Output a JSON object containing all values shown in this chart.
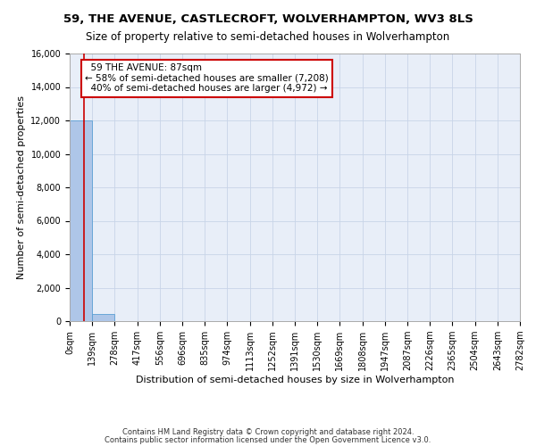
{
  "title": "59, THE AVENUE, CASTLECROFT, WOLVERHAMPTON, WV3 8LS",
  "subtitle": "Size of property relative to semi-detached houses in Wolverhampton",
  "xlabel": "Distribution of semi-detached houses by size in Wolverhampton",
  "ylabel": "Number of semi-detached properties",
  "property_size": 87,
  "property_label": "59 THE AVENUE: 87sqm",
  "pct_smaller": 58,
  "count_smaller": 7208,
  "pct_larger": 40,
  "count_larger": 4972,
  "bin_edges": [
    0,
    139,
    278,
    417,
    556,
    696,
    835,
    974,
    1113,
    1252,
    1391,
    1530,
    1669,
    1808,
    1947,
    2087,
    2226,
    2365,
    2504,
    2643,
    2782
  ],
  "bin_labels": [
    "0sqm",
    "139sqm",
    "278sqm",
    "417sqm",
    "556sqm",
    "696sqm",
    "835sqm",
    "974sqm",
    "1113sqm",
    "1252sqm",
    "1391sqm",
    "1530sqm",
    "1669sqm",
    "1808sqm",
    "1947sqm",
    "2087sqm",
    "2226sqm",
    "2365sqm",
    "2504sqm",
    "2643sqm",
    "2782sqm"
  ],
  "bar_heights": [
    12000,
    450,
    0,
    0,
    0,
    0,
    0,
    0,
    0,
    0,
    0,
    0,
    0,
    0,
    0,
    0,
    0,
    0,
    0,
    0
  ],
  "bar_color": "#aec6e8",
  "bar_edge_color": "#5a9fd4",
  "property_line_color": "#cc0000",
  "annotation_box_color": "#cc0000",
  "ylim": [
    0,
    16000
  ],
  "yticks": [
    0,
    2000,
    4000,
    6000,
    8000,
    10000,
    12000,
    14000,
    16000
  ],
  "grid_color": "#c8d4e8",
  "bg_color": "#e8eef8",
  "footer_line1": "Contains HM Land Registry data © Crown copyright and database right 2024.",
  "footer_line2": "Contains public sector information licensed under the Open Government Licence v3.0.",
  "title_fontsize": 9.5,
  "subtitle_fontsize": 8.5,
  "axis_label_fontsize": 8,
  "tick_fontsize": 7,
  "annotation_fontsize": 7.5,
  "footer_fontsize": 6
}
